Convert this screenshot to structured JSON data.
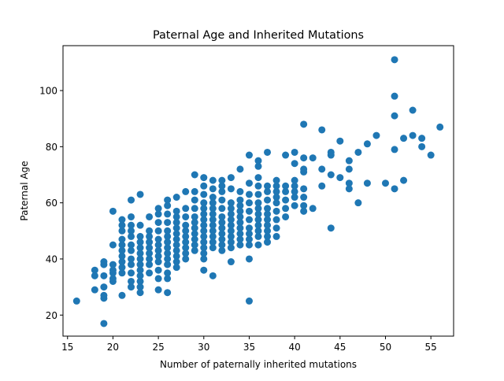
{
  "chart_data": {
    "type": "scatter",
    "title": "Paternal Age and Inherited Mutations",
    "xlabel": "Number of paternally inherited mutations",
    "ylabel": "Paternal Age",
    "xlim": [
      14.5,
      57.5
    ],
    "ylim": [
      12.5,
      116
    ],
    "xticks": [
      15,
      20,
      25,
      30,
      35,
      40,
      45,
      50,
      55
    ],
    "yticks": [
      20,
      40,
      60,
      80,
      100
    ],
    "grid": false,
    "marker_color": "#1f77b4",
    "points": [
      [
        16,
        25
      ],
      [
        18,
        29
      ],
      [
        18,
        34
      ],
      [
        18,
        36
      ],
      [
        19,
        17
      ],
      [
        19,
        26
      ],
      [
        19,
        27
      ],
      [
        19,
        30
      ],
      [
        19,
        34
      ],
      [
        19,
        38
      ],
      [
        19,
        39
      ],
      [
        20,
        32
      ],
      [
        20,
        33
      ],
      [
        20,
        35
      ],
      [
        20,
        36
      ],
      [
        20,
        38
      ],
      [
        20,
        45
      ],
      [
        20,
        57
      ],
      [
        21,
        27
      ],
      [
        21,
        35
      ],
      [
        21,
        37
      ],
      [
        21,
        39
      ],
      [
        21,
        41
      ],
      [
        21,
        43
      ],
      [
        21,
        45
      ],
      [
        21,
        47
      ],
      [
        21,
        50
      ],
      [
        21,
        52
      ],
      [
        21,
        54
      ],
      [
        22,
        30
      ],
      [
        22,
        32
      ],
      [
        22,
        35
      ],
      [
        22,
        38
      ],
      [
        22,
        40
      ],
      [
        22,
        43
      ],
      [
        22,
        45
      ],
      [
        22,
        48
      ],
      [
        22,
        50
      ],
      [
        22,
        52
      ],
      [
        22,
        55
      ],
      [
        22,
        61
      ],
      [
        23,
        28
      ],
      [
        23,
        30
      ],
      [
        23,
        32
      ],
      [
        23,
        34
      ],
      [
        23,
        36
      ],
      [
        23,
        38
      ],
      [
        23,
        40
      ],
      [
        23,
        42
      ],
      [
        23,
        44
      ],
      [
        23,
        46
      ],
      [
        23,
        48
      ],
      [
        23,
        52
      ],
      [
        23,
        63
      ],
      [
        24,
        35
      ],
      [
        24,
        38
      ],
      [
        24,
        40
      ],
      [
        24,
        42
      ],
      [
        24,
        44
      ],
      [
        24,
        46
      ],
      [
        24,
        48
      ],
      [
        24,
        50
      ],
      [
        24,
        55
      ],
      [
        25,
        29
      ],
      [
        25,
        33
      ],
      [
        25,
        36
      ],
      [
        25,
        39
      ],
      [
        25,
        41
      ],
      [
        25,
        43
      ],
      [
        25,
        45
      ],
      [
        25,
        47
      ],
      [
        25,
        50
      ],
      [
        25,
        53
      ],
      [
        25,
        56
      ],
      [
        25,
        58
      ],
      [
        26,
        28
      ],
      [
        26,
        33
      ],
      [
        26,
        35
      ],
      [
        26,
        38
      ],
      [
        26,
        40
      ],
      [
        26,
        42
      ],
      [
        26,
        44
      ],
      [
        26,
        46
      ],
      [
        26,
        48
      ],
      [
        26,
        50
      ],
      [
        26,
        53
      ],
      [
        26,
        56
      ],
      [
        26,
        59
      ],
      [
        26,
        61
      ],
      [
        27,
        37
      ],
      [
        27,
        39
      ],
      [
        27,
        41
      ],
      [
        27,
        43
      ],
      [
        27,
        45
      ],
      [
        27,
        47
      ],
      [
        27,
        49
      ],
      [
        27,
        51
      ],
      [
        27,
        53
      ],
      [
        27,
        55
      ],
      [
        27,
        57
      ],
      [
        27,
        62
      ],
      [
        28,
        40
      ],
      [
        28,
        42
      ],
      [
        28,
        44
      ],
      [
        28,
        46
      ],
      [
        28,
        48
      ],
      [
        28,
        50
      ],
      [
        28,
        52
      ],
      [
        28,
        55
      ],
      [
        28,
        58
      ],
      [
        28,
        64
      ],
      [
        29,
        43
      ],
      [
        29,
        45
      ],
      [
        29,
        47
      ],
      [
        29,
        49
      ],
      [
        29,
        51
      ],
      [
        29,
        53
      ],
      [
        29,
        55
      ],
      [
        29,
        58
      ],
      [
        29,
        61
      ],
      [
        29,
        64
      ],
      [
        29,
        70
      ],
      [
        30,
        36
      ],
      [
        30,
        40
      ],
      [
        30,
        42
      ],
      [
        30,
        44
      ],
      [
        30,
        46
      ],
      [
        30,
        48
      ],
      [
        30,
        50
      ],
      [
        30,
        52
      ],
      [
        30,
        54
      ],
      [
        30,
        56
      ],
      [
        30,
        58
      ],
      [
        30,
        60
      ],
      [
        30,
        63
      ],
      [
        30,
        66
      ],
      [
        30,
        69
      ],
      [
        31,
        34
      ],
      [
        31,
        44
      ],
      [
        31,
        46
      ],
      [
        31,
        48
      ],
      [
        31,
        50
      ],
      [
        31,
        52
      ],
      [
        31,
        54
      ],
      [
        31,
        56
      ],
      [
        31,
        58
      ],
      [
        31,
        60
      ],
      [
        31,
        62
      ],
      [
        31,
        65
      ],
      [
        31,
        68
      ],
      [
        32,
        43
      ],
      [
        32,
        45
      ],
      [
        32,
        47
      ],
      [
        32,
        49
      ],
      [
        32,
        51
      ],
      [
        32,
        53
      ],
      [
        32,
        55
      ],
      [
        32,
        58
      ],
      [
        32,
        61
      ],
      [
        32,
        64
      ],
      [
        32,
        66
      ],
      [
        32,
        68
      ],
      [
        33,
        39
      ],
      [
        33,
        44
      ],
      [
        33,
        46
      ],
      [
        33,
        48
      ],
      [
        33,
        50
      ],
      [
        33,
        52
      ],
      [
        33,
        54
      ],
      [
        33,
        56
      ],
      [
        33,
        58
      ],
      [
        33,
        60
      ],
      [
        33,
        65
      ],
      [
        33,
        69
      ],
      [
        34,
        45
      ],
      [
        34,
        47
      ],
      [
        34,
        49
      ],
      [
        34,
        51
      ],
      [
        34,
        53
      ],
      [
        34,
        55
      ],
      [
        34,
        57
      ],
      [
        34,
        59
      ],
      [
        34,
        61
      ],
      [
        34,
        64
      ],
      [
        34,
        72
      ],
      [
        35,
        25
      ],
      [
        35,
        40
      ],
      [
        35,
        45
      ],
      [
        35,
        47
      ],
      [
        35,
        49
      ],
      [
        35,
        51
      ],
      [
        35,
        54
      ],
      [
        35,
        57
      ],
      [
        35,
        60
      ],
      [
        35,
        63
      ],
      [
        35,
        67
      ],
      [
        35,
        77
      ],
      [
        36,
        45
      ],
      [
        36,
        48
      ],
      [
        36,
        50
      ],
      [
        36,
        52
      ],
      [
        36,
        54
      ],
      [
        36,
        56
      ],
      [
        36,
        58
      ],
      [
        36,
        60
      ],
      [
        36,
        63
      ],
      [
        36,
        66
      ],
      [
        36,
        69
      ],
      [
        36,
        73
      ],
      [
        36,
        75
      ],
      [
        37,
        46
      ],
      [
        37,
        48
      ],
      [
        37,
        50
      ],
      [
        37,
        52
      ],
      [
        37,
        54
      ],
      [
        37,
        56
      ],
      [
        37,
        58
      ],
      [
        37,
        61
      ],
      [
        37,
        64
      ],
      [
        37,
        66
      ],
      [
        37,
        78
      ],
      [
        38,
        48
      ],
      [
        38,
        51
      ],
      [
        38,
        54
      ],
      [
        38,
        57
      ],
      [
        38,
        60
      ],
      [
        38,
        62
      ],
      [
        38,
        64
      ],
      [
        38,
        66
      ],
      [
        38,
        68
      ],
      [
        39,
        55
      ],
      [
        39,
        58
      ],
      [
        39,
        61
      ],
      [
        39,
        64
      ],
      [
        39,
        66
      ],
      [
        39,
        77
      ],
      [
        40,
        59
      ],
      [
        40,
        62
      ],
      [
        40,
        64
      ],
      [
        40,
        66
      ],
      [
        40,
        68
      ],
      [
        40,
        74
      ],
      [
        40,
        78
      ],
      [
        41,
        57
      ],
      [
        41,
        59
      ],
      [
        41,
        62
      ],
      [
        41,
        65
      ],
      [
        41,
        71
      ],
      [
        41,
        72
      ],
      [
        41,
        76
      ],
      [
        41,
        88
      ],
      [
        42,
        58
      ],
      [
        42,
        76
      ],
      [
        43,
        66
      ],
      [
        43,
        72
      ],
      [
        43,
        86
      ],
      [
        44,
        51
      ],
      [
        44,
        70
      ],
      [
        44,
        77
      ],
      [
        44,
        78
      ],
      [
        45,
        69
      ],
      [
        45,
        82
      ],
      [
        46,
        65
      ],
      [
        46,
        67
      ],
      [
        46,
        72
      ],
      [
        46,
        75
      ],
      [
        47,
        60
      ],
      [
        47,
        78
      ],
      [
        48,
        67
      ],
      [
        48,
        81
      ],
      [
        49,
        84
      ],
      [
        50,
        67
      ],
      [
        51,
        65
      ],
      [
        51,
        79
      ],
      [
        51,
        91
      ],
      [
        51,
        98
      ],
      [
        51,
        111
      ],
      [
        52,
        68
      ],
      [
        52,
        83
      ],
      [
        53,
        84
      ],
      [
        53,
        93
      ],
      [
        54,
        80
      ],
      [
        54,
        83
      ],
      [
        55,
        77
      ],
      [
        56,
        87
      ]
    ]
  }
}
